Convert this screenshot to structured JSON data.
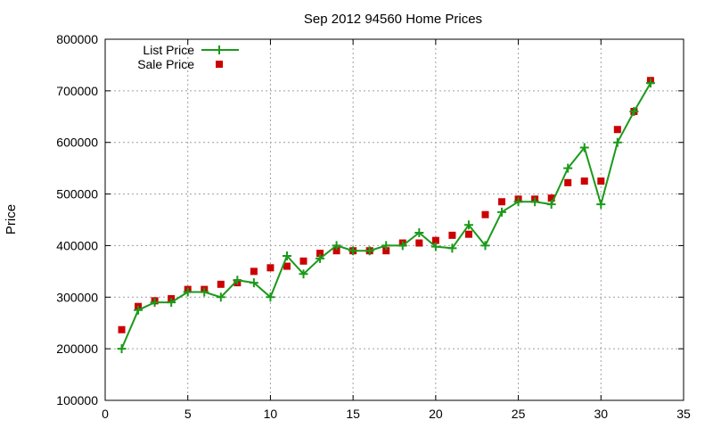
{
  "chart_data": {
    "type": "line",
    "title": "Sep 2012 94560 Home Prices",
    "xlabel": "",
    "ylabel": "Price",
    "xlim": [
      0,
      35
    ],
    "ylim": [
      100000,
      800000
    ],
    "xticks": [
      0,
      5,
      10,
      15,
      20,
      25,
      30,
      35
    ],
    "yticks": [
      100000,
      200000,
      300000,
      400000,
      500000,
      600000,
      700000,
      800000
    ],
    "grid": true,
    "legend_position": "top-left",
    "x": [
      1,
      2,
      3,
      4,
      5,
      6,
      7,
      8,
      9,
      10,
      11,
      12,
      13,
      14,
      15,
      16,
      17,
      18,
      19,
      20,
      21,
      22,
      23,
      24,
      25,
      26,
      27,
      28,
      29,
      30,
      31,
      32,
      33
    ],
    "series": [
      {
        "name": "List Price",
        "style": "line-with-plus-markers",
        "color": "#1a9a1a",
        "values": [
          200000,
          275000,
          290000,
          290000,
          310000,
          310000,
          300000,
          333000,
          328000,
          300000,
          380000,
          345000,
          375000,
          400000,
          390000,
          390000,
          400000,
          400000,
          425000,
          398000,
          395000,
          440000,
          400000,
          465000,
          485000,
          485000,
          480000,
          550000,
          590000,
          480000,
          600000,
          660000,
          715000
        ]
      },
      {
        "name": "Sale Price",
        "style": "square-markers",
        "color": "#cc0000",
        "values": [
          237000,
          282000,
          293000,
          297000,
          315000,
          315000,
          325000,
          328000,
          350000,
          357000,
          360000,
          370000,
          385000,
          390000,
          390000,
          390000,
          390000,
          405000,
          405000,
          410000,
          420000,
          422000,
          460000,
          485000,
          490000,
          490000,
          492000,
          522000,
          525000,
          525000,
          625000,
          660000,
          720000
        ]
      }
    ]
  }
}
